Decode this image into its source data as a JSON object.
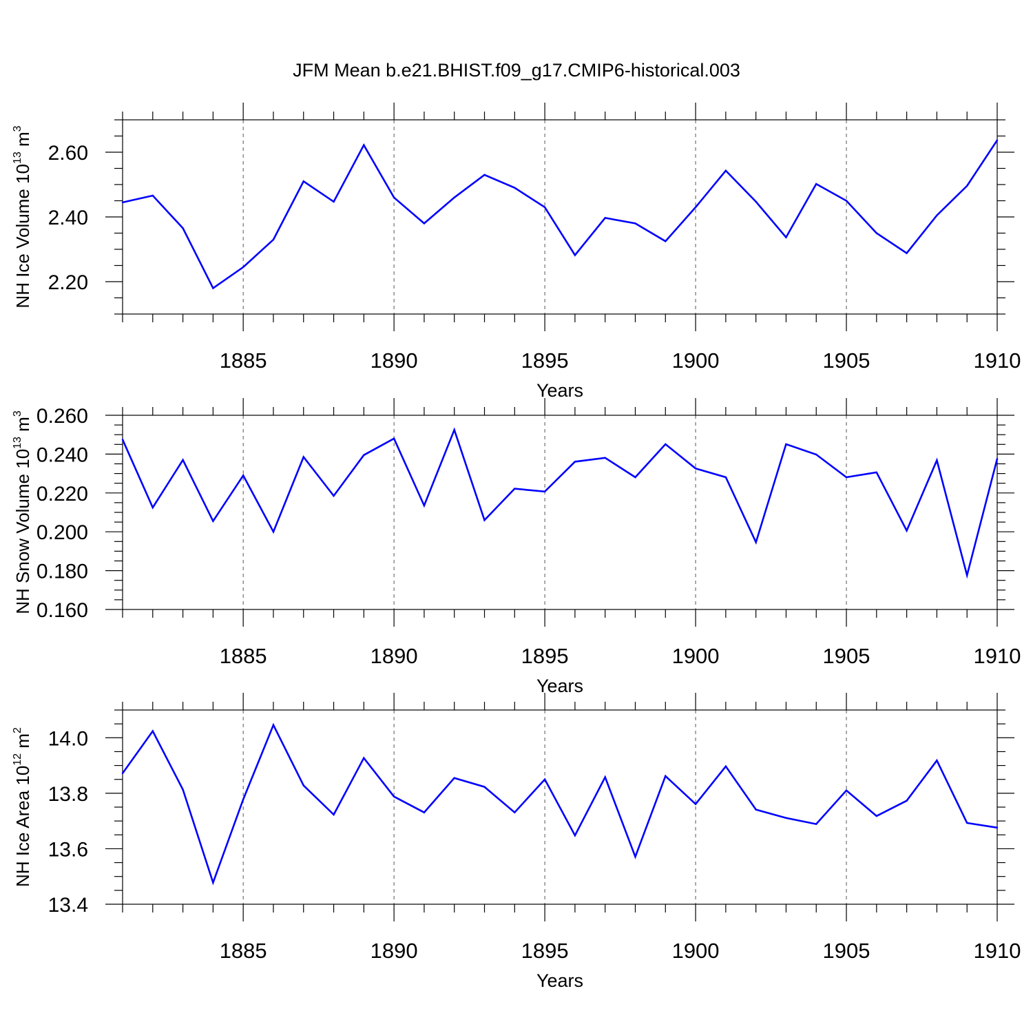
{
  "title": "JFM Mean b.e21.BHIST.f09_g17.CMIP6-historical.003",
  "colors": {
    "line": "#0000ff",
    "frame": "#000000",
    "grid": "#555555"
  },
  "chart_data": [
    {
      "type": "line",
      "ylabel": {
        "text": "NH Ice Volume 10",
        "sup": "13",
        "unit": " m",
        "unit_sup": "3"
      },
      "xlabel": "Years",
      "xlim": [
        1881,
        1910
      ],
      "ylim": [
        2.1,
        2.7
      ],
      "xticks_major": [
        1885,
        1890,
        1895,
        1900,
        1905,
        1910
      ],
      "xtick_labels": [
        "1885",
        "1890",
        "1895",
        "1900",
        "1905",
        "1910"
      ],
      "yticks_major": [
        2.2,
        2.4,
        2.6
      ],
      "ytick_labels": [
        "2.20",
        "2.40",
        "2.60"
      ],
      "y_minor_step": 0.05,
      "grid": "vertical dashed at major x ticks",
      "x": [
        1881,
        1882,
        1883,
        1884,
        1885,
        1886,
        1887,
        1888,
        1889,
        1890,
        1891,
        1892,
        1893,
        1894,
        1895,
        1896,
        1897,
        1898,
        1899,
        1900,
        1901,
        1902,
        1903,
        1904,
        1905,
        1906,
        1907,
        1908,
        1909,
        1910
      ],
      "values": [
        2.445,
        2.466,
        2.365,
        2.18,
        2.245,
        2.33,
        2.51,
        2.447,
        2.622,
        2.46,
        2.38,
        2.46,
        2.53,
        2.49,
        2.43,
        2.282,
        2.397,
        2.38,
        2.325,
        2.43,
        2.543,
        2.447,
        2.337,
        2.502,
        2.45,
        2.35,
        2.288,
        2.405,
        2.496,
        2.637
      ]
    },
    {
      "type": "line",
      "ylabel": {
        "text": "NH Snow Volume 10",
        "sup": "13",
        "unit": " m",
        "unit_sup": "3"
      },
      "xlabel": "Years",
      "xlim": [
        1881,
        1910
      ],
      "ylim": [
        0.16,
        0.26
      ],
      "xticks_major": [
        1885,
        1890,
        1895,
        1900,
        1905,
        1910
      ],
      "xtick_labels": [
        "1885",
        "1890",
        "1895",
        "1900",
        "1905",
        "1910"
      ],
      "yticks_major": [
        0.16,
        0.18,
        0.2,
        0.22,
        0.24,
        0.26
      ],
      "ytick_labels": [
        "0.160",
        "0.180",
        "0.200",
        "0.220",
        "0.240",
        "0.260"
      ],
      "y_minor_step": 0.005,
      "grid": "vertical dashed at major x ticks",
      "x": [
        1881,
        1882,
        1883,
        1884,
        1885,
        1886,
        1887,
        1888,
        1889,
        1890,
        1891,
        1892,
        1893,
        1894,
        1895,
        1896,
        1897,
        1898,
        1899,
        1900,
        1901,
        1902,
        1903,
        1904,
        1905,
        1906,
        1907,
        1908,
        1909,
        1910
      ],
      "values": [
        0.2475,
        0.2125,
        0.237,
        0.2055,
        0.229,
        0.2,
        0.2385,
        0.2185,
        0.2395,
        0.248,
        0.2135,
        0.2525,
        0.206,
        0.2222,
        0.2207,
        0.2361,
        0.2381,
        0.2281,
        0.2451,
        0.2326,
        0.2281,
        0.1946,
        0.2451,
        0.2398,
        0.2281,
        0.2306,
        0.2006,
        0.2368,
        0.1776,
        0.2376
      ]
    },
    {
      "type": "line",
      "ylabel": {
        "text": "NH Ice Area 10",
        "sup": "12",
        "unit": " m",
        "unit_sup": "2"
      },
      "xlabel": "Years",
      "xlim": [
        1881,
        1910
      ],
      "ylim": [
        13.4,
        14.1
      ],
      "xticks_major": [
        1885,
        1890,
        1895,
        1900,
        1905,
        1910
      ],
      "xtick_labels": [
        "1885",
        "1890",
        "1895",
        "1900",
        "1905",
        "1910"
      ],
      "yticks_major": [
        13.4,
        13.6,
        13.8,
        14.0
      ],
      "ytick_labels": [
        "13.4",
        "13.6",
        "13.8",
        "14.0"
      ],
      "y_minor_step": 0.05,
      "grid": "vertical dashed at major x ticks",
      "x": [
        1881,
        1882,
        1883,
        1884,
        1885,
        1886,
        1887,
        1888,
        1889,
        1890,
        1891,
        1892,
        1893,
        1894,
        1895,
        1896,
        1897,
        1898,
        1899,
        1900,
        1901,
        1902,
        1903,
        1904,
        1905,
        1906,
        1907,
        1908,
        1909,
        1910
      ],
      "values": [
        13.872,
        14.024,
        13.813,
        13.478,
        13.778,
        14.046,
        13.828,
        13.723,
        13.927,
        13.788,
        13.731,
        13.855,
        13.823,
        13.731,
        13.85,
        13.648,
        13.858,
        13.571,
        13.862,
        13.761,
        13.897,
        13.741,
        13.711,
        13.689,
        13.81,
        13.718,
        13.773,
        13.918,
        13.693,
        13.676
      ]
    }
  ]
}
